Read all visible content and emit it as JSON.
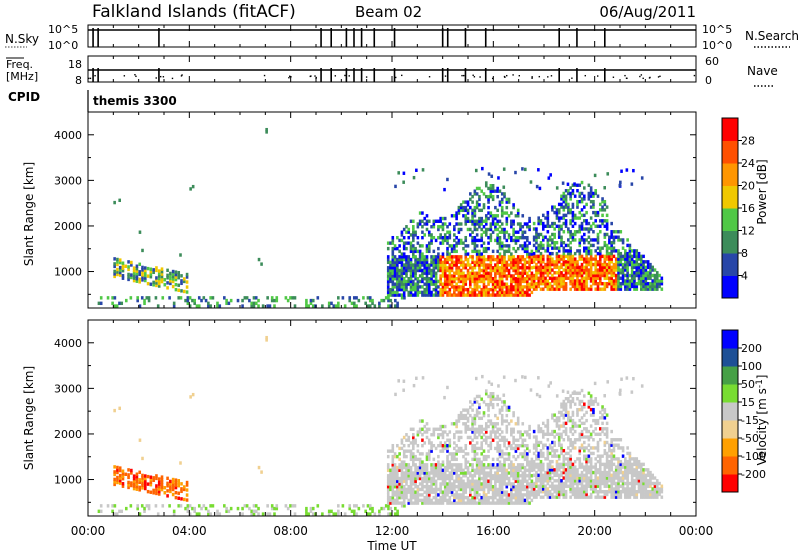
{
  "header": {
    "station": "Falkland Islands (fitACF)",
    "beam": "Beam 02",
    "date": "06/Aug/2011"
  },
  "status_panel": {
    "nsky_label": "N.Sky",
    "nsky_ticks": [
      "10^5",
      "10^0"
    ],
    "nsearch_label": "N.Search",
    "nsearch_ticks": [
      "10^5",
      "10^0"
    ],
    "freq_label": [
      "Freq.",
      "[MHz]"
    ],
    "freq_ticks": [
      "18",
      "8"
    ],
    "nave_label": "Nave",
    "nave_ticks": [
      "60",
      "0"
    ],
    "cpid_label": "CPID",
    "cpid_value": "themis 3300",
    "mode_change_hours": [
      0.2,
      0.4,
      2.8,
      9.2,
      9.6,
      10.2,
      10.5,
      10.8,
      11.3,
      12.1,
      14.0,
      14.2,
      14.9,
      15.7,
      18.6,
      19.3,
      20.4
    ]
  },
  "colors": {
    "power": [
      "#0000ff",
      "#2846a8",
      "#3c8c5a",
      "#50c846",
      "#f0c800",
      "#ff9600",
      "#ff5000",
      "#ff0000"
    ],
    "velocity": [
      "#ff0000",
      "#ff6400",
      "#ffa000",
      "#f0d090",
      "#c8c8c8",
      "#78dc32",
      "#46a046",
      "#1e5096",
      "#0000ff"
    ]
  },
  "chart_data": [
    {
      "type": "heatmap",
      "panel": "power",
      "ylabel": "Slant Range [km]",
      "yticks": [
        "4000",
        "3000",
        "2000",
        "1000"
      ],
      "ylim": [
        200,
        4500
      ],
      "colorbar_label": "Power [dB]",
      "colorbar_ticks": [
        "28",
        "24",
        "20",
        "16",
        "12",
        "8",
        "4"
      ],
      "colorbar_range": [
        0,
        32
      ],
      "regions": [
        {
          "t": [
            1.0,
            3.8
          ],
          "range": [
            700,
            1300
          ],
          "power": "8-20"
        },
        {
          "t": [
            0.2,
            12.0
          ],
          "range": [
            200,
            400
          ],
          "power": "8-16"
        },
        {
          "t": [
            11.8,
            22.5
          ],
          "range": [
            500,
            3000
          ],
          "power": "4-12"
        },
        {
          "t": [
            14.0,
            20.5
          ],
          "range": [
            500,
            1400
          ],
          "power": "20-32"
        }
      ]
    },
    {
      "type": "heatmap",
      "panel": "velocity",
      "ylabel": "Slant Range [km]",
      "yticks": [
        "4000",
        "3000",
        "2000",
        "1000"
      ],
      "ylim": [
        200,
        4500
      ],
      "xlabel": "Time UT",
      "xticks": [
        "00:00",
        "04:00",
        "08:00",
        "12:00",
        "16:00",
        "20:00",
        "00:00"
      ],
      "xlim_hours": [
        0,
        24
      ],
      "colorbar_label": "Velocity [m s^-1]",
      "colorbar_ticks": [
        "200",
        "100",
        "50",
        "15",
        "-15",
        "-50",
        "-100",
        "-200"
      ],
      "regions": [
        {
          "t": [
            1.0,
            3.8
          ],
          "range": [
            700,
            1300
          ],
          "velocity": "-50 to -200"
        },
        {
          "t": [
            11.8,
            22.5
          ],
          "range": [
            500,
            3000
          ],
          "velocity": "-15 to 15"
        }
      ]
    }
  ]
}
